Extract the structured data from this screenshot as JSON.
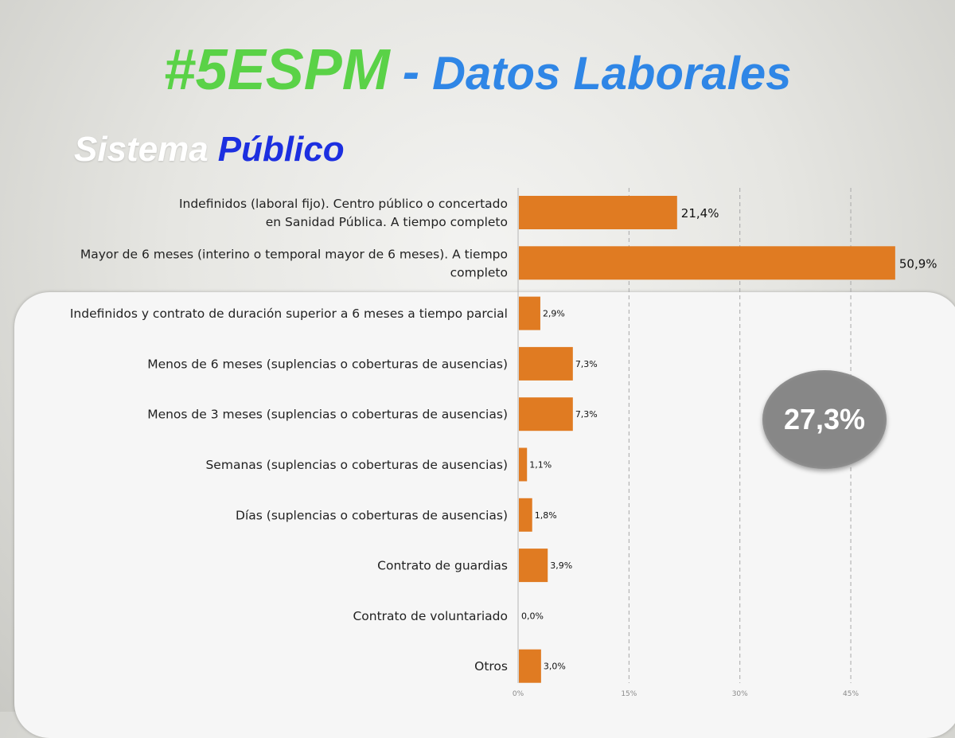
{
  "header": {
    "title_hash": "#5ESPM",
    "title_dash": "-",
    "title_rest": "Datos Laborales",
    "subtitle_a": "Sistema",
    "subtitle_b": "Público"
  },
  "colors": {
    "bar": "#e07b22",
    "green": "#5ad247",
    "blue": "#2f86e6",
    "dark_blue": "#1c2fe0",
    "badge": "#878787"
  },
  "badge": {
    "value": "27,3%"
  },
  "chart_data": {
    "type": "bar",
    "orientation": "horizontal",
    "categories": [
      [
        "Indefinidos (laboral fijo). Centro público  o concertado",
        "en Sanidad Pública. A tiempo completo"
      ],
      [
        "Mayor de 6 meses (interino o temporal mayor de 6 meses). A tiempo",
        "completo"
      ],
      [
        "Indefinidos y contrato de duración superior a 6 meses a tiempo parcial"
      ],
      [
        "Menos de 6 meses (suplencias o coberturas de ausencias)"
      ],
      [
        "Menos de 3 meses (suplencias o coberturas de ausencias)"
      ],
      [
        "Semanas (suplencias o coberturas de ausencias)"
      ],
      [
        "Días (suplencias o coberturas de ausencias)"
      ],
      [
        "Contrato de guardias"
      ],
      [
        "Contrato de voluntariado"
      ],
      [
        "Otros"
      ]
    ],
    "values": [
      21.4,
      50.9,
      2.9,
      7.3,
      7.3,
      1.1,
      1.8,
      3.9,
      0.0,
      3.0
    ],
    "value_labels": [
      "21,4%",
      "50,9%",
      "2,9%",
      "7,3%",
      "7,3%",
      "1,1%",
      "1,8%",
      "3,9%",
      "0,0%",
      "3,0%"
    ],
    "x_ticks": [
      0,
      15,
      30,
      45
    ],
    "x_tick_labels": [
      "0%",
      "15%",
      "30%",
      "45%"
    ],
    "xlim": [
      0,
      54
    ],
    "grid": "vertical dashed"
  }
}
